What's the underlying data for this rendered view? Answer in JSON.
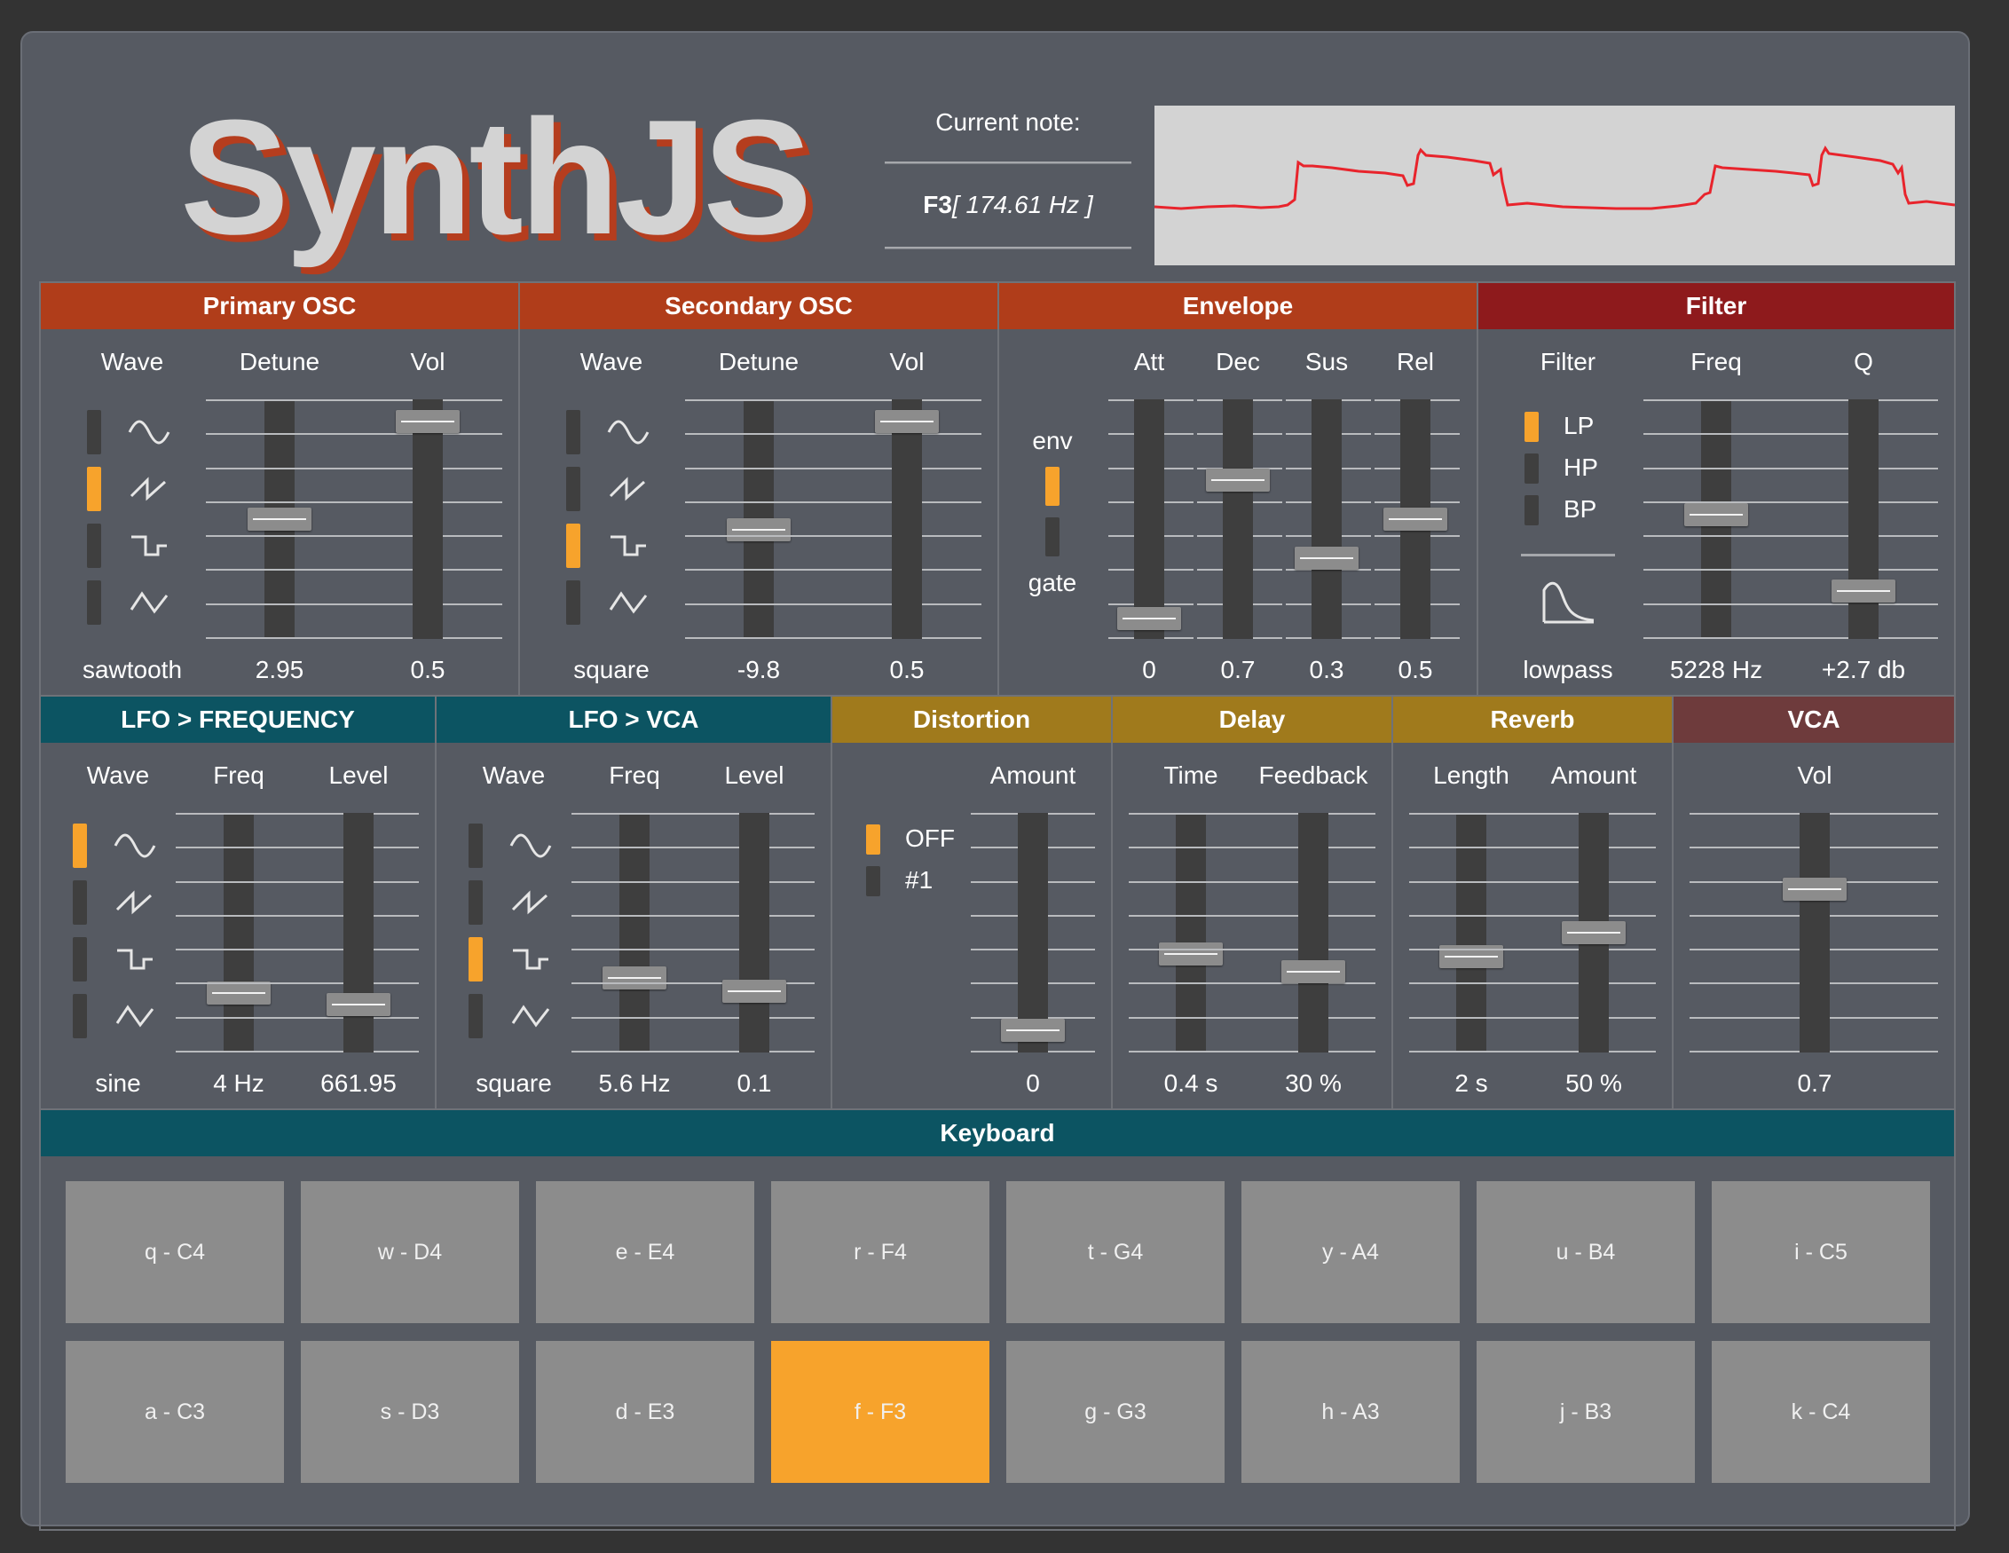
{
  "app": {
    "logo": "SynthJS"
  },
  "note": {
    "label": "Current note:",
    "name": "F3",
    "freq": "[ 174.61 Hz ]"
  },
  "colors": {
    "osc": "#b03d1a",
    "filter": "#8e1a1c",
    "lfo": "#0c5462",
    "fx": "#a07a1c",
    "vca": "#6e3b3c",
    "keyboard": "#0c5462",
    "accent": "#f7a32c"
  },
  "scope": {
    "trace_color": "#e8242c"
  },
  "panels": {
    "primary_osc": {
      "title": "Primary OSC",
      "wave_label": "Wave",
      "detune_label": "Detune",
      "vol_label": "Vol",
      "wave_value": "sawtooth",
      "detune_value": "2.95",
      "vol_value": "0.5",
      "selected_wave": 1,
      "detune_level": 0.5,
      "vol_level": 0.95
    },
    "secondary_osc": {
      "title": "Secondary OSC",
      "wave_label": "Wave",
      "detune_label": "Detune",
      "vol_label": "Vol",
      "wave_value": "square",
      "detune_value": "-9.8",
      "vol_value": "0.5",
      "selected_wave": 2,
      "detune_level": 0.45,
      "vol_level": 0.95
    },
    "envelope": {
      "title": "Envelope",
      "env_label": "env",
      "gate_label": "gate",
      "att_label": "Att",
      "dec_label": "Dec",
      "sus_label": "Sus",
      "rel_label": "Rel",
      "att_value": "0",
      "dec_value": "0.7",
      "sus_value": "0.3",
      "rel_value": "0.5",
      "mode": "env",
      "att_level": 0.04,
      "dec_level": 0.68,
      "sus_level": 0.32,
      "rel_level": 0.5
    },
    "filter": {
      "title": "Filter",
      "filter_label": "Filter",
      "freq_label": "Freq",
      "q_label": "Q",
      "types": [
        "LP",
        "HP",
        "BP"
      ],
      "selected_type": 0,
      "type_value": "lowpass",
      "freq_value": "5228 Hz",
      "q_value": "+2.7 db",
      "freq_level": 0.52,
      "q_level": 0.17
    },
    "lfo_freq": {
      "title": "LFO > FREQUENCY",
      "wave_label": "Wave",
      "freq_label": "Freq",
      "level_label": "Level",
      "wave_value": "sine",
      "freq_value": "4 Hz",
      "level_value": "661.95",
      "selected_wave": 0,
      "freq_level": 0.22,
      "level_level": 0.17
    },
    "lfo_vca": {
      "title": "LFO > VCA",
      "wave_label": "Wave",
      "freq_label": "Freq",
      "level_label": "Level",
      "wave_value": "square",
      "freq_value": "5.6 Hz",
      "level_value": "0.1",
      "selected_wave": 2,
      "freq_level": 0.29,
      "level_level": 0.23
    },
    "distortion": {
      "title": "Distortion",
      "amount_label": "Amount",
      "options": [
        "OFF",
        "#1"
      ],
      "selected": 0,
      "amount_value": "0",
      "amount_level": 0.05
    },
    "delay": {
      "title": "Delay",
      "time_label": "Time",
      "feedback_label": "Feedback",
      "time_value": "0.4 s",
      "feedback_value": "30 %",
      "time_level": 0.4,
      "feedback_level": 0.32
    },
    "reverb": {
      "title": "Reverb",
      "length_label": "Length",
      "amount_label": "Amount",
      "length_value": "2 s",
      "amount_value": "50 %",
      "length_level": 0.39,
      "amount_level": 0.5
    },
    "vca": {
      "title": "VCA",
      "vol_label": "Vol",
      "vol_value": "0.7",
      "vol_level": 0.7
    }
  },
  "keyboard": {
    "title": "Keyboard",
    "row1": [
      "q - C4",
      "w - D4",
      "e - E4",
      "r - F4",
      "t - G4",
      "y - A4",
      "u - B4",
      "i - C5"
    ],
    "row2": [
      "a - C3",
      "s - D3",
      "d - E3",
      "f - F3",
      "g - G3",
      "h - A3",
      "j - B3",
      "k - C4"
    ],
    "active": "f - F3"
  },
  "icons": {
    "waves": [
      "sine-wave-icon",
      "sawtooth-wave-icon",
      "square-wave-icon",
      "triangle-wave-icon"
    ],
    "filter_shape": "lowpass-curve-icon"
  }
}
